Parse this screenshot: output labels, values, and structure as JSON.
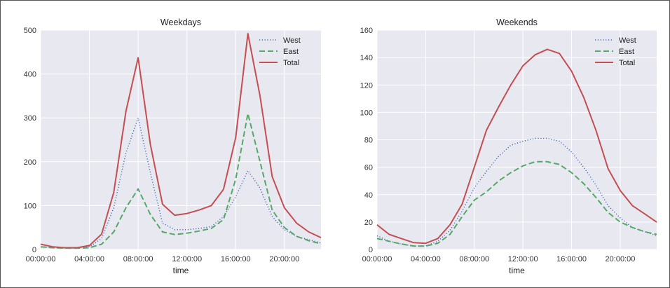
{
  "colors": {
    "background": "#e8e8f1",
    "grid": "#ffffff",
    "west": "#4c72b0",
    "east": "#55a868",
    "total": "#c44e52"
  },
  "chart_data": [
    {
      "type": "line",
      "title": "Weekdays",
      "xlabel": "time",
      "ylabel": "",
      "xlim": [
        0,
        23
      ],
      "ylim": [
        0,
        500
      ],
      "yticks": [
        "0",
        "100",
        "200",
        "300",
        "400",
        "500"
      ],
      "yticks_values": [
        0,
        100,
        200,
        300,
        400,
        500
      ],
      "xticks": [
        "00:00:00",
        "04:00:00",
        "08:00:00",
        "12:00:00",
        "16:00:00",
        "20:00:00"
      ],
      "xticks_values": [
        0,
        4,
        8,
        12,
        16,
        20
      ],
      "grid": true,
      "legend_position": "top-right",
      "x": [
        0,
        1,
        2,
        3,
        4,
        5,
        6,
        7,
        8,
        9,
        10,
        11,
        12,
        13,
        14,
        15,
        16,
        17,
        18,
        19,
        20,
        21,
        22,
        23
      ],
      "series": [
        {
          "name": "West",
          "style": "dotted",
          "color_key": "west",
          "values": [
            6,
            4,
            3,
            3,
            6,
            25,
            95,
            220,
            300,
            175,
            60,
            45,
            45,
            48,
            52,
            75,
            120,
            180,
            140,
            75,
            45,
            30,
            22,
            15
          ]
        },
        {
          "name": "East",
          "style": "dashed",
          "color_key": "east",
          "values": [
            6,
            4,
            3,
            3,
            4,
            12,
            40,
            95,
            138,
            80,
            40,
            34,
            37,
            42,
            48,
            68,
            160,
            310,
            200,
            90,
            50,
            30,
            20,
            13
          ]
        },
        {
          "name": "Total",
          "style": "solid",
          "color_key": "total",
          "values": [
            12,
            6,
            4,
            4,
            9,
            35,
            130,
            315,
            437,
            240,
            103,
            78,
            82,
            90,
            100,
            137,
            255,
            492,
            350,
            166,
            95,
            60,
            40,
            27
          ]
        }
      ]
    },
    {
      "type": "line",
      "title": "Weekends",
      "xlabel": "time",
      "ylabel": "",
      "xlim": [
        0,
        23
      ],
      "ylim": [
        0,
        160
      ],
      "yticks": [
        "0",
        "20",
        "40",
        "60",
        "80",
        "100",
        "120",
        "140",
        "160"
      ],
      "yticks_values": [
        0,
        20,
        40,
        60,
        80,
        100,
        120,
        140,
        160
      ],
      "xticks": [
        "00:00:00",
        "04:00:00",
        "08:00:00",
        "12:00:00",
        "16:00:00",
        "20:00:00"
      ],
      "xticks_values": [
        0,
        4,
        8,
        12,
        16,
        20
      ],
      "grid": true,
      "legend_position": "top-right",
      "x": [
        0,
        1,
        2,
        3,
        4,
        5,
        6,
        7,
        8,
        9,
        10,
        11,
        12,
        13,
        14,
        15,
        16,
        17,
        18,
        19,
        20,
        21,
        22,
        23
      ],
      "series": [
        {
          "name": "West",
          "style": "dotted",
          "color_key": "west",
          "values": [
            10,
            6,
            4,
            2.5,
            2.5,
            6,
            14,
            28,
            45,
            57,
            68,
            76,
            79,
            81,
            81,
            79,
            71,
            60,
            47,
            32,
            23,
            16,
            13,
            10
          ]
        },
        {
          "name": "East",
          "style": "dashed",
          "color_key": "east",
          "values": [
            8,
            6,
            4,
            2.5,
            2.5,
            4.5,
            11,
            24,
            36,
            42,
            50,
            56,
            61,
            64,
            64,
            62,
            56,
            48,
            38,
            27,
            20,
            16,
            13,
            11
          ]
        },
        {
          "name": "Total",
          "style": "solid",
          "color_key": "total",
          "values": [
            18,
            11,
            8,
            5,
            4.5,
            8,
            18,
            33,
            60,
            87,
            104,
            120,
            134,
            142,
            146,
            143,
            130,
            111,
            87,
            59,
            43,
            32,
            26,
            20
          ]
        }
      ]
    }
  ]
}
